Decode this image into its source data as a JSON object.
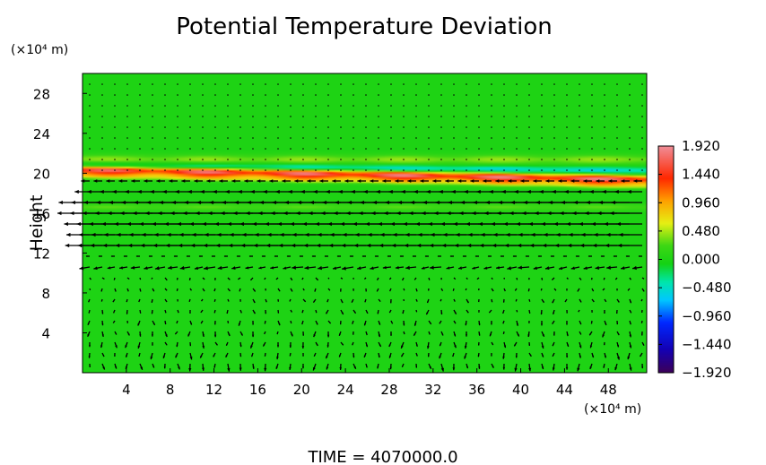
{
  "chart_data": {
    "type": "heatmap",
    "title": "Potential Temperature Deviation",
    "ylabel": "Height",
    "x_unit": "(×10⁴ m)",
    "y_unit": "(×10⁴ m)",
    "x_ticks": [
      4,
      8,
      12,
      16,
      20,
      24,
      28,
      32,
      36,
      40,
      44,
      48
    ],
    "y_ticks": [
      4,
      8,
      12,
      16,
      20,
      24,
      28
    ],
    "x_tick_labels": [
      "4",
      "8",
      "12",
      "16",
      "20",
      "24",
      "28",
      "32",
      "36",
      "40",
      "44",
      "48"
    ],
    "y_tick_labels": [
      "4",
      "8",
      "12",
      "16",
      "20",
      "24",
      "28"
    ],
    "xlim": [
      0,
      51.5
    ],
    "ylim": [
      0,
      30
    ],
    "colorbar": {
      "min": -1.92,
      "max": 1.92,
      "tick_values": [
        1.92,
        1.44,
        0.96,
        0.48,
        0.0,
        -0.48,
        -0.96,
        -1.44,
        -1.92
      ],
      "tick_labels": [
        "1.920",
        "1.440",
        "0.960",
        "0.480",
        "0.000",
        "−0.480",
        "−0.960",
        "−1.440",
        "−1.920"
      ]
    },
    "field": {
      "background_value": 0.0,
      "bands": [
        {
          "y_center": 20.4,
          "width": 0.4,
          "amplitude": 1.9,
          "tilt_per_x": -0.02
        },
        {
          "y_center": 20.8,
          "width": 0.35,
          "amplitude": -0.6,
          "tilt_per_x": -0.01
        },
        {
          "y_center": 19.8,
          "width": 0.3,
          "amplitude": 0.8,
          "tilt_per_x": -0.02
        },
        {
          "y_center": 21.4,
          "width": 0.5,
          "amplitude": 0.45,
          "tilt_per_x": 0.0
        },
        {
          "y_center": 16.6,
          "width": 0.35,
          "amplitude": 0.3,
          "tilt_per_x": 0.0
        }
      ]
    },
    "wind_field": {
      "jet_levels": [
        {
          "y": 16.1,
          "u": -3.2
        },
        {
          "y": 17.0,
          "u": -3.0
        },
        {
          "y": 15.0,
          "u": -2.6
        },
        {
          "y": 13.8,
          "u": -2.2
        },
        {
          "y": 12.9,
          "u": -2.6
        },
        {
          "y": 18.1,
          "u": -1.4
        },
        {
          "y": 11.0,
          "u": -1.6
        },
        {
          "y": 19.0,
          "u": -1.0
        }
      ],
      "low_level_w": -0.6
    }
  },
  "footer": {
    "time_label": "TIME  =  4070000.0"
  },
  "colors": {
    "field_background": "#14d214",
    "axis": "#000000",
    "arrow": "#000000"
  }
}
